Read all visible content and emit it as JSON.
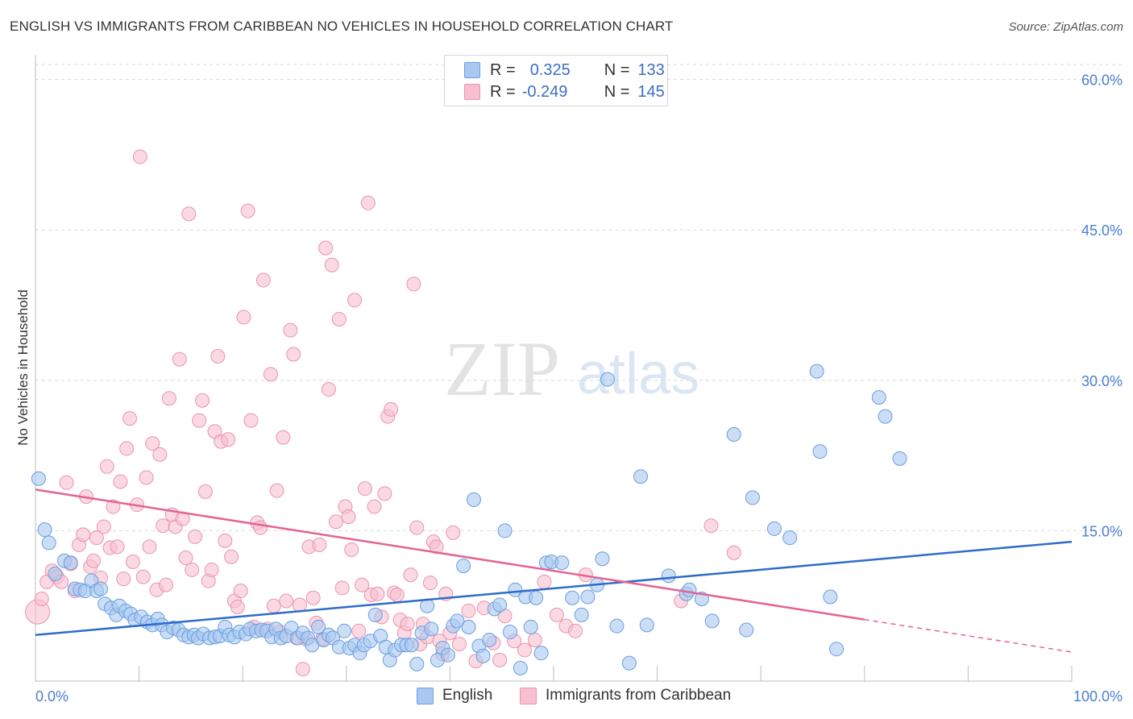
{
  "title": "ENGLISH VS IMMIGRANTS FROM CARIBBEAN NO VEHICLES IN HOUSEHOLD CORRELATION CHART",
  "source": "Source: ZipAtlas.com",
  "watermark": {
    "zip": "ZIP",
    "atlas": "atlas"
  },
  "legend": {
    "rows": [
      {
        "r_label": "R =",
        "r_value": "0.325",
        "n_label": "N =",
        "n_value": "133"
      },
      {
        "r_label": "R =",
        "r_value": "-0.249",
        "n_label": "N =",
        "n_value": "145"
      }
    ]
  },
  "bottom_legend": [
    "English",
    "Immigrants from Caribbean"
  ],
  "colors": {
    "english_fill": "#a9c8f0",
    "english_stroke": "#6a9ee0",
    "english_line": "#2e6cc9",
    "carib_fill": "#f7bfd0",
    "carib_stroke": "#ec93af",
    "carib_line": "#e4648f",
    "tick_text": "#4a7fd0",
    "grid": "#d9d9d9"
  },
  "chart_data": {
    "type": "scatter",
    "title": "ENGLISH VS IMMIGRANTS FROM CARIBBEAN NO VEHICLES IN HOUSEHOLD CORRELATION CHART",
    "xlabel": "",
    "ylabel": "No Vehicles in Household",
    "x_tick_labels": [
      "0.0%",
      "100.0%"
    ],
    "y_tick_labels": [
      "15.0%",
      "30.0%",
      "45.0%",
      "60.0%"
    ],
    "y_ticks": [
      15,
      30,
      45,
      60
    ],
    "xlim": [
      0,
      100
    ],
    "ylim": [
      0,
      61.5
    ],
    "grid": true,
    "legend_placement": "top-center",
    "series": [
      {
        "name": "English",
        "r": 0.325,
        "n": 133,
        "trend": {
          "x": [
            0,
            100
          ],
          "y": [
            4.6,
            13.9
          ]
        },
        "points": [
          [
            0.3,
            20.2
          ],
          [
            0.9,
            15.1
          ],
          [
            1.3,
            13.8
          ],
          [
            1.9,
            10.7
          ],
          [
            2.8,
            12.0
          ],
          [
            3.4,
            11.8
          ],
          [
            3.8,
            9.2
          ],
          [
            4.3,
            9.1
          ],
          [
            4.8,
            9.0
          ],
          [
            5.4,
            10.0
          ],
          [
            5.9,
            9.0
          ],
          [
            6.3,
            9.2
          ],
          [
            6.7,
            7.7
          ],
          [
            7.3,
            7.3
          ],
          [
            7.8,
            6.6
          ],
          [
            8.1,
            7.5
          ],
          [
            8.7,
            7.0
          ],
          [
            9.2,
            6.7
          ],
          [
            9.6,
            6.1
          ],
          [
            10.2,
            6.4
          ],
          [
            10.8,
            5.9
          ],
          [
            11.3,
            5.6
          ],
          [
            11.8,
            6.2
          ],
          [
            12.2,
            5.6
          ],
          [
            12.7,
            4.9
          ],
          [
            13.3,
            5.3
          ],
          [
            13.8,
            5.1
          ],
          [
            14.3,
            4.6
          ],
          [
            14.8,
            4.4
          ],
          [
            15.3,
            4.6
          ],
          [
            15.7,
            4.3
          ],
          [
            16.2,
            4.7
          ],
          [
            16.8,
            4.3
          ],
          [
            17.3,
            4.4
          ],
          [
            17.8,
            4.5
          ],
          [
            18.3,
            5.4
          ],
          [
            18.7,
            4.6
          ],
          [
            19.2,
            4.4
          ],
          [
            19.7,
            4.9
          ],
          [
            20.3,
            4.7
          ],
          [
            20.7,
            5.2
          ],
          [
            21.3,
            5.0
          ],
          [
            21.8,
            5.1
          ],
          [
            22.3,
            5.0
          ],
          [
            22.8,
            4.4
          ],
          [
            23.2,
            5.2
          ],
          [
            23.7,
            4.3
          ],
          [
            24.2,
            4.5
          ],
          [
            24.7,
            5.3
          ],
          [
            25.3,
            4.3
          ],
          [
            25.8,
            4.8
          ],
          [
            26.3,
            4.3
          ],
          [
            26.7,
            3.6
          ],
          [
            27.3,
            5.4
          ],
          [
            27.8,
            4.1
          ],
          [
            28.3,
            4.6
          ],
          [
            28.7,
            4.3
          ],
          [
            29.3,
            3.4
          ],
          [
            29.8,
            5.0
          ],
          [
            30.3,
            3.3
          ],
          [
            30.8,
            3.6
          ],
          [
            31.3,
            2.8
          ],
          [
            31.7,
            3.6
          ],
          [
            32.3,
            4.0
          ],
          [
            32.8,
            6.6
          ],
          [
            33.3,
            4.5
          ],
          [
            33.8,
            3.4
          ],
          [
            34.2,
            2.1
          ],
          [
            34.7,
            3.1
          ],
          [
            35.3,
            3.6
          ],
          [
            35.8,
            3.6
          ],
          [
            36.3,
            3.6
          ],
          [
            36.8,
            1.7
          ],
          [
            37.3,
            4.8
          ],
          [
            37.8,
            7.5
          ],
          [
            38.2,
            5.2
          ],
          [
            38.8,
            2.1
          ],
          [
            39.3,
            3.3
          ],
          [
            39.8,
            2.6
          ],
          [
            40.3,
            5.5
          ],
          [
            40.7,
            6.0
          ],
          [
            41.3,
            11.5
          ],
          [
            41.8,
            5.4
          ],
          [
            42.3,
            18.1
          ],
          [
            42.8,
            3.5
          ],
          [
            43.2,
            2.5
          ],
          [
            43.8,
            4.1
          ],
          [
            44.3,
            7.2
          ],
          [
            44.8,
            7.6
          ],
          [
            45.3,
            15.0
          ],
          [
            45.8,
            4.9
          ],
          [
            46.3,
            9.1
          ],
          [
            46.8,
            1.3
          ],
          [
            47.3,
            8.4
          ],
          [
            47.8,
            5.4
          ],
          [
            48.3,
            8.3
          ],
          [
            48.8,
            2.8
          ],
          [
            49.3,
            11.8
          ],
          [
            49.8,
            11.9
          ],
          [
            50.8,
            11.8
          ],
          [
            51.8,
            8.3
          ],
          [
            52.7,
            6.6
          ],
          [
            53.3,
            8.4
          ],
          [
            54.2,
            9.6
          ],
          [
            54.7,
            12.2
          ],
          [
            55.2,
            30.1
          ],
          [
            56.1,
            5.5
          ],
          [
            57.3,
            1.8
          ],
          [
            58.4,
            20.4
          ],
          [
            59.0,
            5.6
          ],
          [
            61.1,
            10.5
          ],
          [
            62.8,
            8.7
          ],
          [
            63.1,
            9.1
          ],
          [
            64.3,
            8.2
          ],
          [
            65.3,
            6.0
          ],
          [
            67.4,
            24.6
          ],
          [
            68.6,
            5.1
          ],
          [
            69.2,
            18.3
          ],
          [
            71.3,
            15.2
          ],
          [
            72.8,
            14.3
          ],
          [
            75.4,
            30.9
          ],
          [
            75.7,
            22.9
          ],
          [
            76.7,
            8.4
          ],
          [
            77.3,
            3.2
          ],
          [
            81.4,
            28.3
          ],
          [
            82.0,
            26.4
          ],
          [
            83.4,
            22.2
          ]
        ]
      },
      {
        "name": "Immigrants from Caribbean",
        "r": -0.249,
        "n": 145,
        "trend": {
          "x": [
            0,
            100
          ],
          "y": [
            19.1,
            2.9
          ],
          "solid_until_x": 80
        },
        "points": [
          [
            0.2,
            6.9
          ],
          [
            0.6,
            8.2
          ],
          [
            1.1,
            9.9
          ],
          [
            1.6,
            11.0
          ],
          [
            2.1,
            10.4
          ],
          [
            2.5,
            9.9
          ],
          [
            3.0,
            19.8
          ],
          [
            3.4,
            11.7
          ],
          [
            3.8,
            9.0
          ],
          [
            4.2,
            13.6
          ],
          [
            4.6,
            14.6
          ],
          [
            4.9,
            18.4
          ],
          [
            5.3,
            11.4
          ],
          [
            5.6,
            12.0
          ],
          [
            5.9,
            14.3
          ],
          [
            6.3,
            10.3
          ],
          [
            6.6,
            15.4
          ],
          [
            6.9,
            21.4
          ],
          [
            7.2,
            13.3
          ],
          [
            7.5,
            17.4
          ],
          [
            7.9,
            13.4
          ],
          [
            8.2,
            19.9
          ],
          [
            8.5,
            10.2
          ],
          [
            8.8,
            23.2
          ],
          [
            9.1,
            26.2
          ],
          [
            9.4,
            11.9
          ],
          [
            9.8,
            17.6
          ],
          [
            10.1,
            52.3
          ],
          [
            10.4,
            10.4
          ],
          [
            10.7,
            20.3
          ],
          [
            11.0,
            13.4
          ],
          [
            11.3,
            23.7
          ],
          [
            11.7,
            9.1
          ],
          [
            12.0,
            22.6
          ],
          [
            12.3,
            15.5
          ],
          [
            12.6,
            9.6
          ],
          [
            12.9,
            28.2
          ],
          [
            13.2,
            16.6
          ],
          [
            13.5,
            15.4
          ],
          [
            13.9,
            32.1
          ],
          [
            14.2,
            16.2
          ],
          [
            14.5,
            12.3
          ],
          [
            14.8,
            46.6
          ],
          [
            15.1,
            11.1
          ],
          [
            15.4,
            14.4
          ],
          [
            15.8,
            26.0
          ],
          [
            16.1,
            28.0
          ],
          [
            16.4,
            18.9
          ],
          [
            16.7,
            10.0
          ],
          [
            17.0,
            11.1
          ],
          [
            17.3,
            24.9
          ],
          [
            17.6,
            32.4
          ],
          [
            17.9,
            23.9
          ],
          [
            18.3,
            14.0
          ],
          [
            18.6,
            24.1
          ],
          [
            18.9,
            12.4
          ],
          [
            19.2,
            8.0
          ],
          [
            19.5,
            7.4
          ],
          [
            19.8,
            9.0
          ],
          [
            20.1,
            36.3
          ],
          [
            20.5,
            46.9
          ],
          [
            20.8,
            26.0
          ],
          [
            21.1,
            5.4
          ],
          [
            21.4,
            15.8
          ],
          [
            21.7,
            15.3
          ],
          [
            22.0,
            40.0
          ],
          [
            22.4,
            5.2
          ],
          [
            22.7,
            30.6
          ],
          [
            23.0,
            7.5
          ],
          [
            23.3,
            19.0
          ],
          [
            23.6,
            4.9
          ],
          [
            23.9,
            24.3
          ],
          [
            24.2,
            8.0
          ],
          [
            24.6,
            35.0
          ],
          [
            24.9,
            32.6
          ],
          [
            25.2,
            4.3
          ],
          [
            25.5,
            7.6
          ],
          [
            25.8,
            1.2
          ],
          [
            26.1,
            4.2
          ],
          [
            26.4,
            13.4
          ],
          [
            26.8,
            8.3
          ],
          [
            27.1,
            5.8
          ],
          [
            27.4,
            13.6
          ],
          [
            27.7,
            4.2
          ],
          [
            28.0,
            43.2
          ],
          [
            28.3,
            29.1
          ],
          [
            28.6,
            41.5
          ],
          [
            29.0,
            15.9
          ],
          [
            29.3,
            36.1
          ],
          [
            29.6,
            9.3
          ],
          [
            29.9,
            17.4
          ],
          [
            30.2,
            16.4
          ],
          [
            30.5,
            13.1
          ],
          [
            30.8,
            38.0
          ],
          [
            31.2,
            5.0
          ],
          [
            31.5,
            9.6
          ],
          [
            31.8,
            19.2
          ],
          [
            32.1,
            47.7
          ],
          [
            32.4,
            8.6
          ],
          [
            32.7,
            17.4
          ],
          [
            33.0,
            8.7
          ],
          [
            33.4,
            6.4
          ],
          [
            33.7,
            18.7
          ],
          [
            34.0,
            26.4
          ],
          [
            34.3,
            27.1
          ],
          [
            34.6,
            8.8
          ],
          [
            34.9,
            8.6
          ],
          [
            35.2,
            6.1
          ],
          [
            35.6,
            4.8
          ],
          [
            35.9,
            5.7
          ],
          [
            36.2,
            10.6
          ],
          [
            36.5,
            39.6
          ],
          [
            36.8,
            15.3
          ],
          [
            37.1,
            3.7
          ],
          [
            37.4,
            5.7
          ],
          [
            37.8,
            4.4
          ],
          [
            38.1,
            9.8
          ],
          [
            38.4,
            13.9
          ],
          [
            38.7,
            13.4
          ],
          [
            39.0,
            4.0
          ],
          [
            39.3,
            2.7
          ],
          [
            39.6,
            8.7
          ],
          [
            40.0,
            4.8
          ],
          [
            40.3,
            14.8
          ],
          [
            40.9,
            3.7
          ],
          [
            41.8,
            7.0
          ],
          [
            42.5,
            2.0
          ],
          [
            43.3,
            7.3
          ],
          [
            44.2,
            3.8
          ],
          [
            44.8,
            2.1
          ],
          [
            45.3,
            6.5
          ],
          [
            46.2,
            4.0
          ],
          [
            47.2,
            3.1
          ],
          [
            48.2,
            4.1
          ],
          [
            49.1,
            9.9
          ],
          [
            50.3,
            6.6
          ],
          [
            51.2,
            5.5
          ],
          [
            52.1,
            5.0
          ],
          [
            53.1,
            10.6
          ],
          [
            62.3,
            8.0
          ],
          [
            65.2,
            15.5
          ],
          [
            67.4,
            12.8
          ]
        ]
      }
    ]
  }
}
